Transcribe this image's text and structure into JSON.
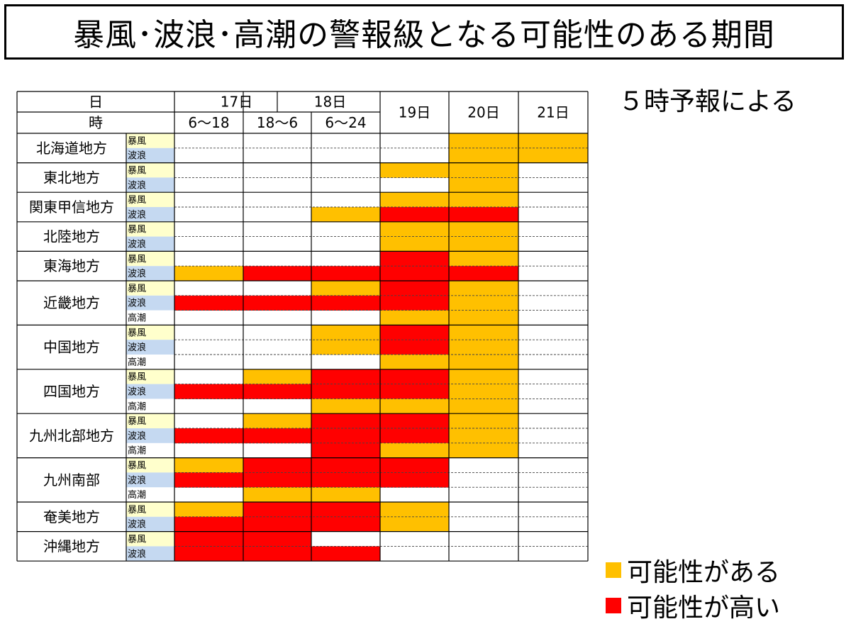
{
  "title": "暴風･波浪･高潮の警報級となる可能性のある期間",
  "note": "５時予報による",
  "colors": {
    "possible": "#FFC000",
    "high": "#FF0000",
    "storm_label_bg": "#FFFFCC",
    "wave_label_bg": "#C5D9F1"
  },
  "legend": [
    {
      "label": "可能性がある",
      "color": "#FFC000"
    },
    {
      "label": "可能性が高い",
      "color": "#FF0000"
    }
  ],
  "chart_data": {
    "type": "table",
    "header": {
      "day_label": "日",
      "hour_label": "時",
      "days": [
        "17日",
        "18日",
        "19日",
        "20日",
        "21日"
      ],
      "periods": [
        "6～18",
        "18～6",
        "6～24"
      ]
    },
    "columns": [
      "17日 6～18",
      "17日18時～18日6時",
      "18日 6～24",
      "19日",
      "20日",
      "21日"
    ],
    "level_codes": {
      "0": "none",
      "1": "可能性がある",
      "2": "可能性が高い"
    },
    "regions": [
      {
        "name": "北海道地方",
        "rows": [
          {
            "hazard": "暴風",
            "levels": [
              0,
              0,
              0,
              0,
              1,
              1
            ]
          },
          {
            "hazard": "波浪",
            "levels": [
              0,
              0,
              0,
              0,
              1,
              1
            ]
          }
        ]
      },
      {
        "name": "東北地方",
        "rows": [
          {
            "hazard": "暴風",
            "levels": [
              0,
              0,
              0,
              1,
              1,
              0
            ]
          },
          {
            "hazard": "波浪",
            "levels": [
              0,
              0,
              0,
              0,
              1,
              0
            ]
          }
        ]
      },
      {
        "name": "関東甲信地方",
        "rows": [
          {
            "hazard": "暴風",
            "levels": [
              0,
              0,
              0,
              1,
              1,
              0
            ]
          },
          {
            "hazard": "波浪",
            "levels": [
              0,
              0,
              1,
              2,
              2,
              0
            ]
          }
        ]
      },
      {
        "name": "北陸地方",
        "rows": [
          {
            "hazard": "暴風",
            "levels": [
              0,
              0,
              0,
              1,
              1,
              0
            ]
          },
          {
            "hazard": "波浪",
            "levels": [
              0,
              0,
              0,
              1,
              1,
              0
            ]
          }
        ]
      },
      {
        "name": "東海地方",
        "rows": [
          {
            "hazard": "暴風",
            "levels": [
              0,
              0,
              0,
              2,
              1,
              0
            ]
          },
          {
            "hazard": "波浪",
            "levels": [
              1,
              2,
              2,
              2,
              2,
              0
            ]
          }
        ]
      },
      {
        "name": "近畿地方",
        "rows": [
          {
            "hazard": "暴風",
            "levels": [
              0,
              0,
              1,
              2,
              1,
              0
            ]
          },
          {
            "hazard": "波浪",
            "levels": [
              2,
              2,
              2,
              2,
              1,
              0
            ]
          },
          {
            "hazard": "高潮",
            "levels": [
              0,
              0,
              0,
              1,
              1,
              0
            ]
          }
        ]
      },
      {
        "name": "中国地方",
        "rows": [
          {
            "hazard": "暴風",
            "levels": [
              0,
              0,
              1,
              2,
              1,
              0
            ]
          },
          {
            "hazard": "波浪",
            "levels": [
              0,
              0,
              1,
              2,
              1,
              0
            ]
          },
          {
            "hazard": "高潮",
            "levels": [
              0,
              0,
              0,
              1,
              1,
              0
            ]
          }
        ]
      },
      {
        "name": "四国地方",
        "rows": [
          {
            "hazard": "暴風",
            "levels": [
              0,
              1,
              2,
              2,
              1,
              0
            ]
          },
          {
            "hazard": "波浪",
            "levels": [
              2,
              2,
              2,
              2,
              1,
              0
            ]
          },
          {
            "hazard": "高潮",
            "levels": [
              0,
              0,
              1,
              1,
              1,
              0
            ]
          }
        ]
      },
      {
        "name": "九州北部地方",
        "rows": [
          {
            "hazard": "暴風",
            "levels": [
              0,
              1,
              2,
              2,
              1,
              0
            ]
          },
          {
            "hazard": "波浪",
            "levels": [
              2,
              2,
              2,
              2,
              1,
              0
            ]
          },
          {
            "hazard": "高潮",
            "levels": [
              0,
              0,
              2,
              1,
              1,
              0
            ]
          }
        ]
      },
      {
        "name": "九州南部",
        "rows": [
          {
            "hazard": "暴風",
            "levels": [
              1,
              2,
              2,
              2,
              0,
              0
            ]
          },
          {
            "hazard": "波浪",
            "levels": [
              2,
              2,
              2,
              2,
              0,
              0
            ]
          },
          {
            "hazard": "高潮",
            "levels": [
              0,
              1,
              1,
              0,
              0,
              0
            ]
          }
        ]
      },
      {
        "name": "奄美地方",
        "rows": [
          {
            "hazard": "暴風",
            "levels": [
              1,
              2,
              2,
              1,
              0,
              0
            ]
          },
          {
            "hazard": "波浪",
            "levels": [
              2,
              2,
              2,
              1,
              0,
              0
            ]
          }
        ]
      },
      {
        "name": "沖縄地方",
        "rows": [
          {
            "hazard": "暴風",
            "levels": [
              2,
              2,
              0,
              0,
              0,
              0
            ]
          },
          {
            "hazard": "波浪",
            "levels": [
              2,
              2,
              2,
              0,
              0,
              0
            ]
          }
        ]
      }
    ]
  }
}
